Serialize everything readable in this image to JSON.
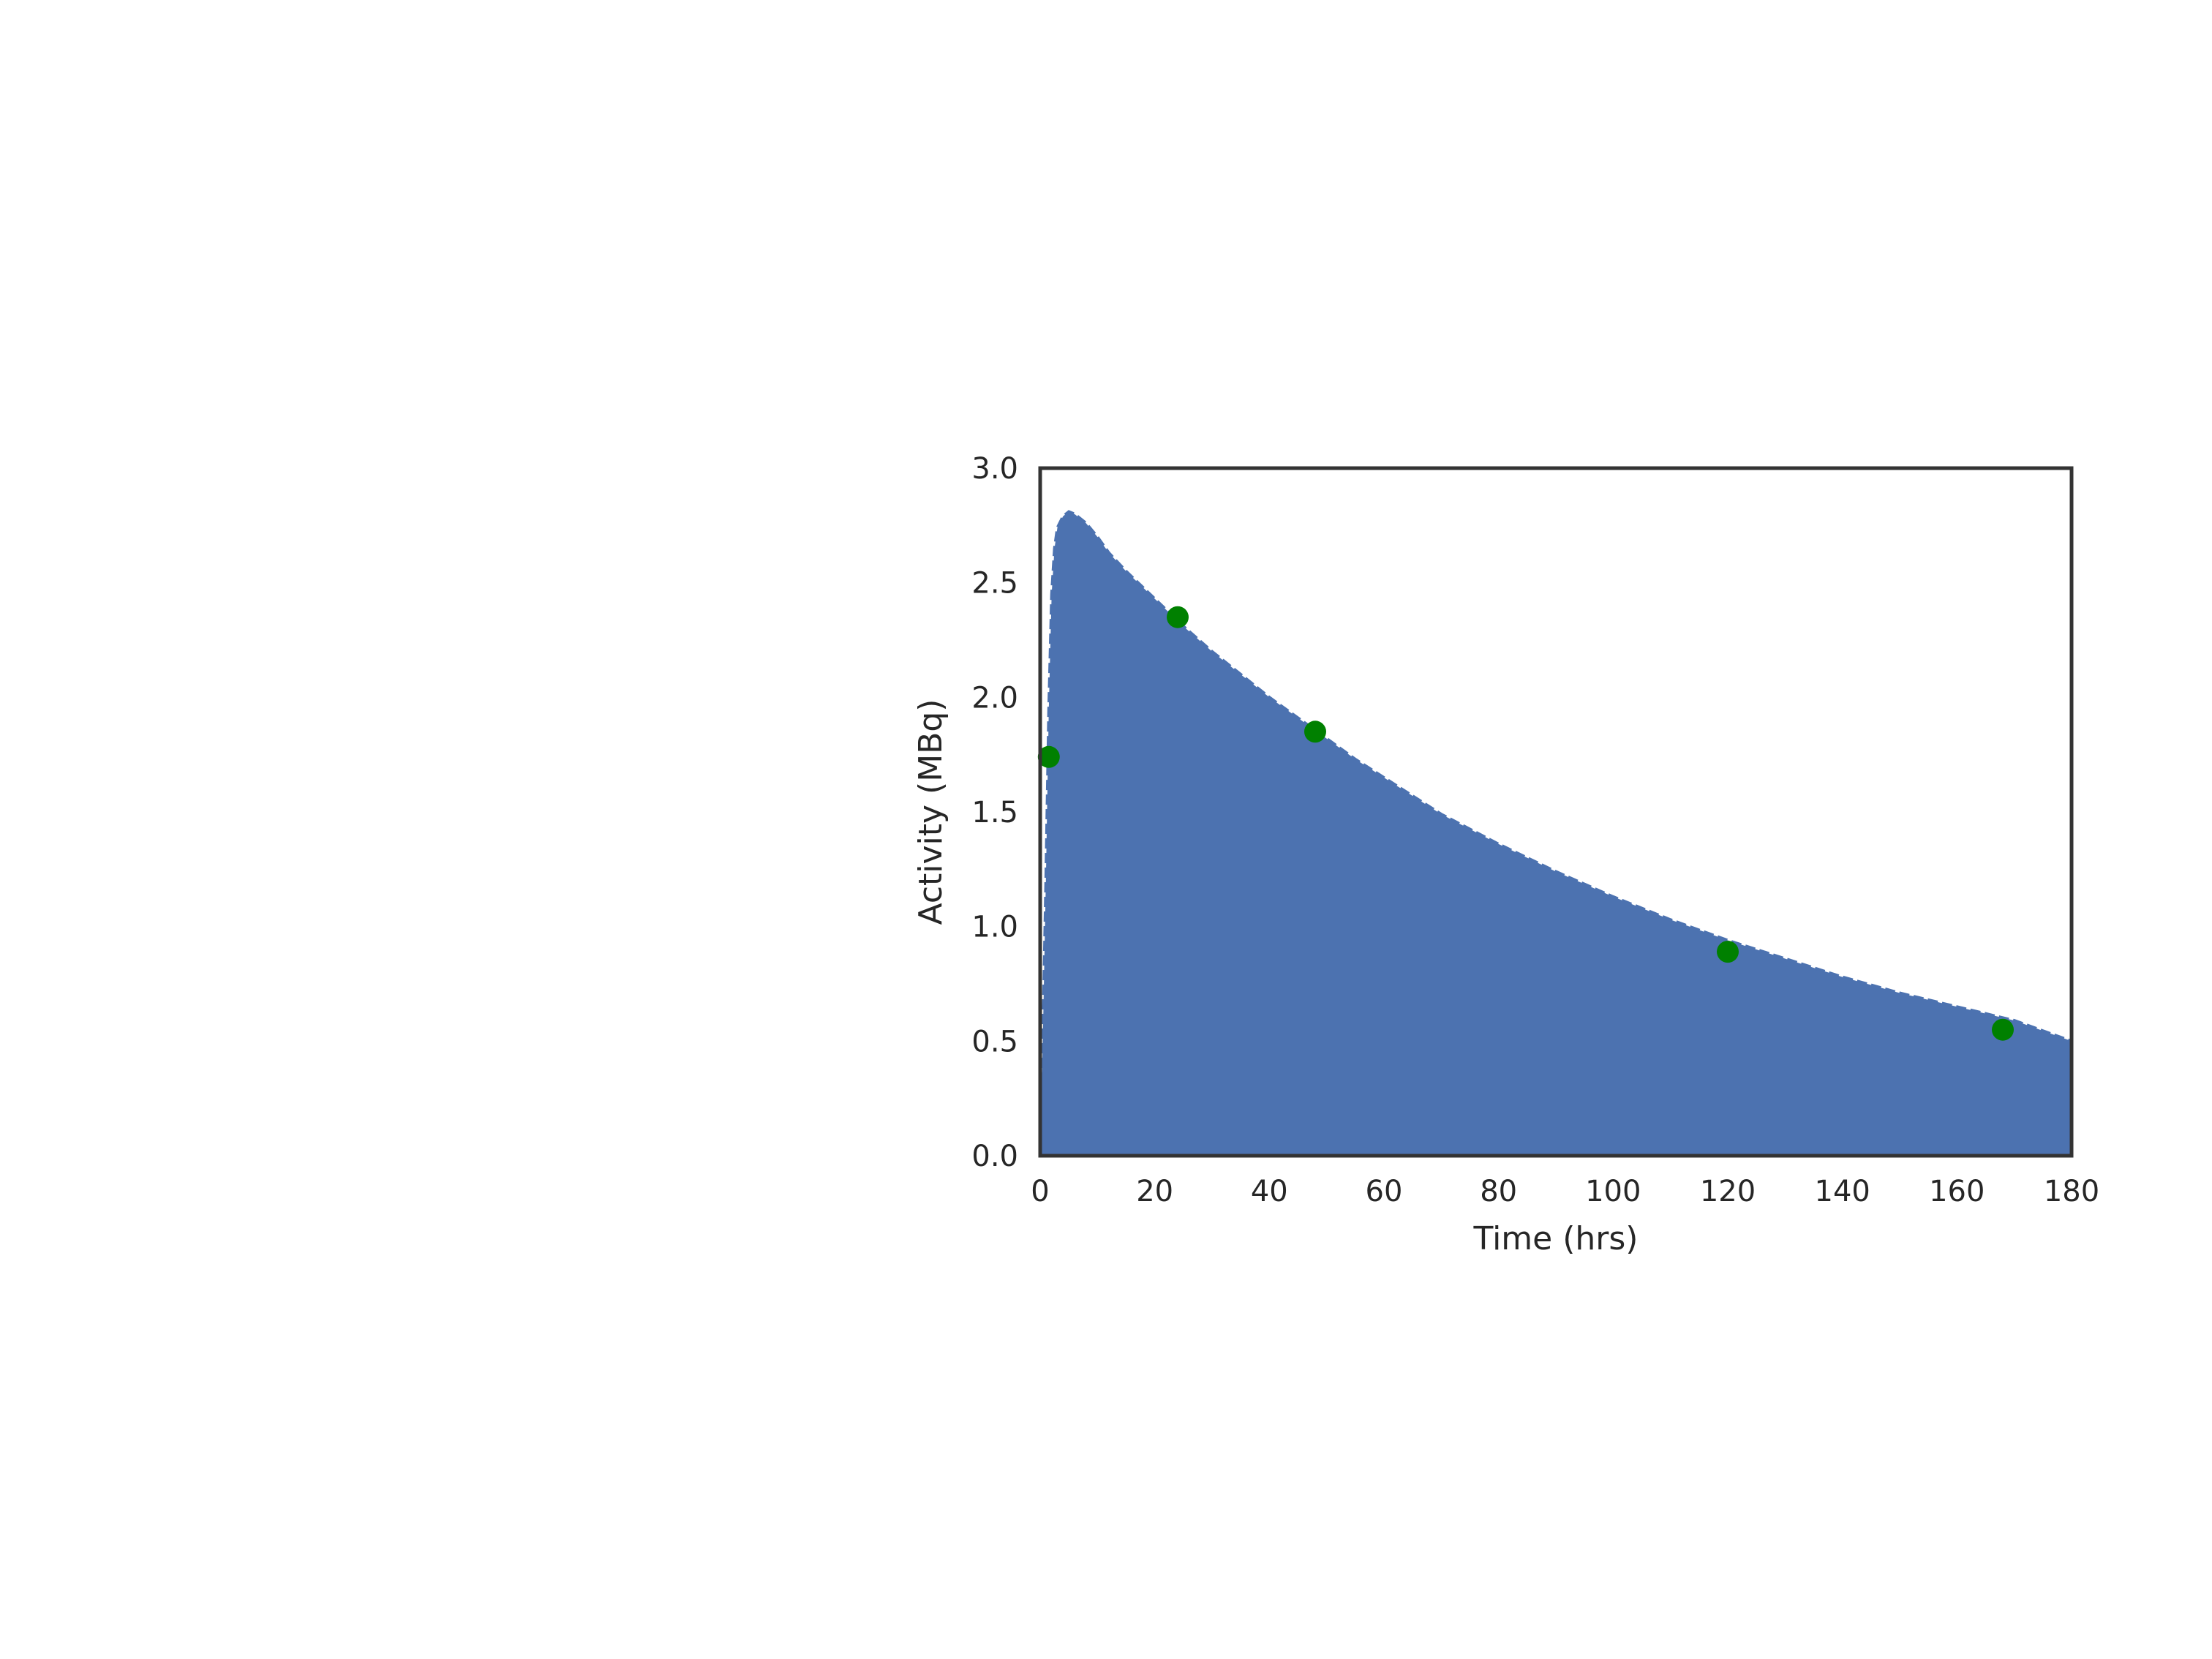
{
  "chart_data": {
    "type": "area",
    "title": "",
    "xlabel": "Time (hrs)",
    "ylabel": "Activity (MBq)",
    "xlim": [
      0,
      180
    ],
    "ylim": [
      0,
      3.0
    ],
    "xticks": [
      0,
      20,
      40,
      60,
      80,
      100,
      120,
      140,
      160,
      180
    ],
    "yticks": [
      0.0,
      0.5,
      1.0,
      1.5,
      2.0,
      2.5,
      3.0
    ],
    "xtick_labels": [
      "0",
      "20",
      "40",
      "60",
      "80",
      "100",
      "120",
      "140",
      "160",
      "180"
    ],
    "ytick_labels": [
      "0.0",
      "0.5",
      "1.0",
      "1.5",
      "2.0",
      "2.5",
      "3.0"
    ],
    "grid": false,
    "series": [
      {
        "type": "area",
        "x": [
          0,
          0.5,
          1,
          1.5,
          2,
          2.5,
          3,
          4,
          5,
          6,
          8,
          10,
          12,
          15,
          20,
          25,
          30,
          35,
          40,
          45,
          50,
          55,
          60,
          70,
          80,
          90,
          100,
          110,
          120,
          130,
          140,
          150,
          160,
          170,
          180
        ],
        "y": [
          0.0,
          0.55,
          1.2,
          1.95,
          2.45,
          2.65,
          2.74,
          2.79,
          2.81,
          2.8,
          2.76,
          2.7,
          2.63,
          2.55,
          2.43,
          2.31,
          2.2,
          2.1,
          2.0,
          1.91,
          1.82,
          1.73,
          1.65,
          1.49,
          1.36,
          1.24,
          1.13,
          1.03,
          0.94,
          0.86,
          0.78,
          0.71,
          0.65,
          0.59,
          0.5
        ],
        "color": "#4c72b0"
      },
      {
        "type": "scatter",
        "x": [
          1.5,
          24,
          48,
          120,
          168
        ],
        "y": [
          1.74,
          2.35,
          1.85,
          0.89,
          0.55
        ],
        "color": "#008000"
      }
    ]
  },
  "colors": {
    "area_fill": "#4c72b0",
    "scatter": "#008000",
    "frame": "#333333",
    "text": "#262626"
  }
}
